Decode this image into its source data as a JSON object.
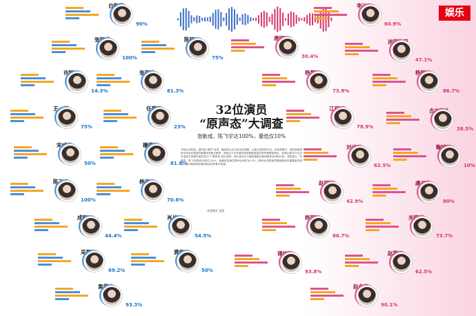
{
  "logo": "娱乐",
  "title": {
    "line1": "32位演员",
    "line2": "“原声态”大调查",
    "subtitle": "张新成、陈飞宇达100%，最低仅10%"
  },
  "credit": "本版撰文  张茜",
  "male": [
    {
      "name": "白敬亭",
      "pct": "90%"
    },
    {
      "name": "张新成",
      "pct": "100%"
    },
    {
      "name": "陈晓",
      "pct": "75%"
    },
    {
      "name": "许凯",
      "pct": "14.3%"
    },
    {
      "name": "张若昀",
      "pct": "81.3%"
    },
    {
      "name": "王一博",
      "pct": "75%"
    },
    {
      "name": "任嘉伦",
      "pct": "23%"
    },
    {
      "name": "宋威龙",
      "pct": "50%"
    },
    {
      "name": "檀健次",
      "pct": "81.8%"
    },
    {
      "name": "陈飞宇",
      "pct": "100%"
    },
    {
      "name": "杨洋",
      "pct": "70.6%"
    },
    {
      "name": "成毅",
      "pct": "44.4%"
    },
    {
      "name": "肖战",
      "pct": "54.5%"
    },
    {
      "name": "吴磊",
      "pct": "69.2%"
    },
    {
      "name": "龚俊",
      "pct": "50%"
    },
    {
      "name": "黄景瑜",
      "pct": "93.3%"
    }
  ],
  "female": [
    {
      "name": "李沁",
      "pct": "60.9%"
    },
    {
      "name": "唐嫣",
      "pct": "30.4%"
    },
    {
      "name": "迪丽热巴",
      "pct": "47.1%"
    },
    {
      "name": "杨幂",
      "pct": "73.9%"
    },
    {
      "name": "杨紫",
      "pct": "86.7%"
    },
    {
      "name": "江疏影",
      "pct": "78.9%"
    },
    {
      "name": "古力娜扎",
      "pct": "38.5%"
    },
    {
      "name": "刘诗诗",
      "pct": "62.5%"
    },
    {
      "name": "鞠婧祎",
      "pct": "10%"
    },
    {
      "name": "赵丽颖",
      "pct": "42.9%"
    },
    {
      "name": "虞书欣",
      "pct": "80%"
    },
    {
      "name": "杨颖",
      "pct": "86.7%"
    },
    {
      "name": "关晓彤",
      "pct": "73.7%"
    },
    {
      "name": "谭松韵",
      "pct": "93.8%"
    },
    {
      "name": "赵露思",
      "pct": "62.5%"
    },
    {
      "name": "赵今麦",
      "pct": "90.1%"
    }
  ],
  "article_text": "不知从何时起，演员用“原声”台词，竟然成为大众热议的话题，以致引发网络讨论。在电视剧中，演员使用原声台词本应是演员最基本的职业素养，然而当下许多演员却依赖配音演员的声音塑造角色。本报记者对32位近年活跃于荧屏的演员进行了“原声态”统计调查，统计其近年主演电视剧中使用原声台词的比例。调查显示，张新成、陈飞宇原声比例达100%，而最低的演员原声比例仅为10%。原声台词是演员塑造角色的重要组成部分，观众期待听到演员真实的声音与表演。"
}
